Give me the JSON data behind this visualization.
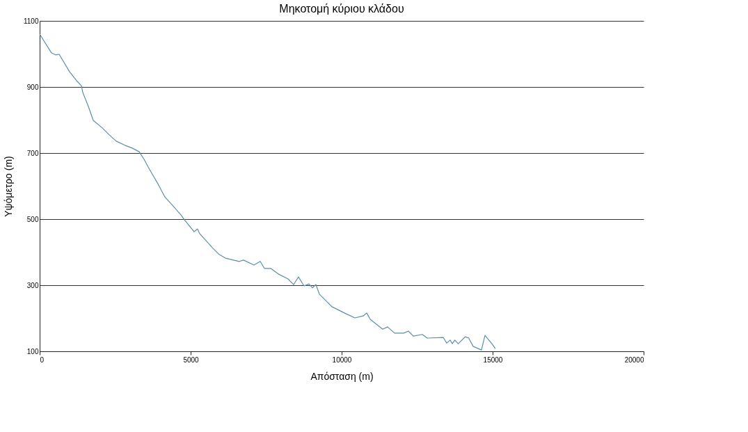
{
  "chart_data": {
    "type": "line",
    "title": "Μηκοτομή κύριου κλάδου",
    "xlabel": "Απόσταση (m)",
    "ylabel": "Υψόμετρο (m)",
    "x": [
      0,
      392,
      530,
      645,
      991,
      1221,
      1382,
      1429,
      1613,
      1774,
      2074,
      2304,
      2535,
      2834,
      3065,
      3295,
      3456,
      3641,
      3917,
      4147,
      4378,
      4677,
      4793,
      5115,
      5230,
      5300,
      5576,
      5714,
      5945,
      6152,
      6613,
      6751,
      7097,
      7304,
      7442,
      7650,
      7903,
      8226,
      8410,
      8571,
      8755,
      8917,
      9032,
      9147,
      9263,
      9677,
      10138,
      10438,
      10714,
      10829,
      10945,
      11359,
      11521,
      11751,
      12051,
      12212,
      12373,
      12673,
      12834,
      13364,
      13479,
      13594,
      13663,
      13747,
      13862,
      14092,
      14208,
      14355,
      14630,
      14746,
      14976,
      15091
    ],
    "series": [
      {
        "color": "#5b8fa8",
        "values": [
          1060,
          1003,
          997,
          999,
          946,
          919,
          904,
          883,
          841,
          799,
          776,
          755,
          736,
          723,
          715,
          704,
          681,
          650,
          607,
          567,
          544,
          513,
          498,
          462,
          470,
          456,
          428,
          414,
          393,
          382,
          372,
          376,
          361,
          372,
          351,
          351,
          334,
          319,
          302,
          325,
          298,
          304,
          292,
          302,
          273,
          235,
          214,
          201,
          207,
          216,
          197,
          167,
          174,
          155,
          155,
          161,
          146,
          151,
          140,
          142,
          125,
          134,
          123,
          134,
          123,
          144,
          140,
          115,
          104,
          148,
          123,
          108
        ]
      }
    ],
    "xlim": [
      0,
      20000
    ],
    "xticks": [
      0,
      5000,
      10000,
      15000,
      20000
    ],
    "ylim": [
      100,
      1100
    ],
    "yticks": [
      100,
      300,
      500,
      700,
      900,
      1100
    ],
    "grid": "y",
    "legend": false,
    "marker": "none",
    "line_style": "solid"
  }
}
